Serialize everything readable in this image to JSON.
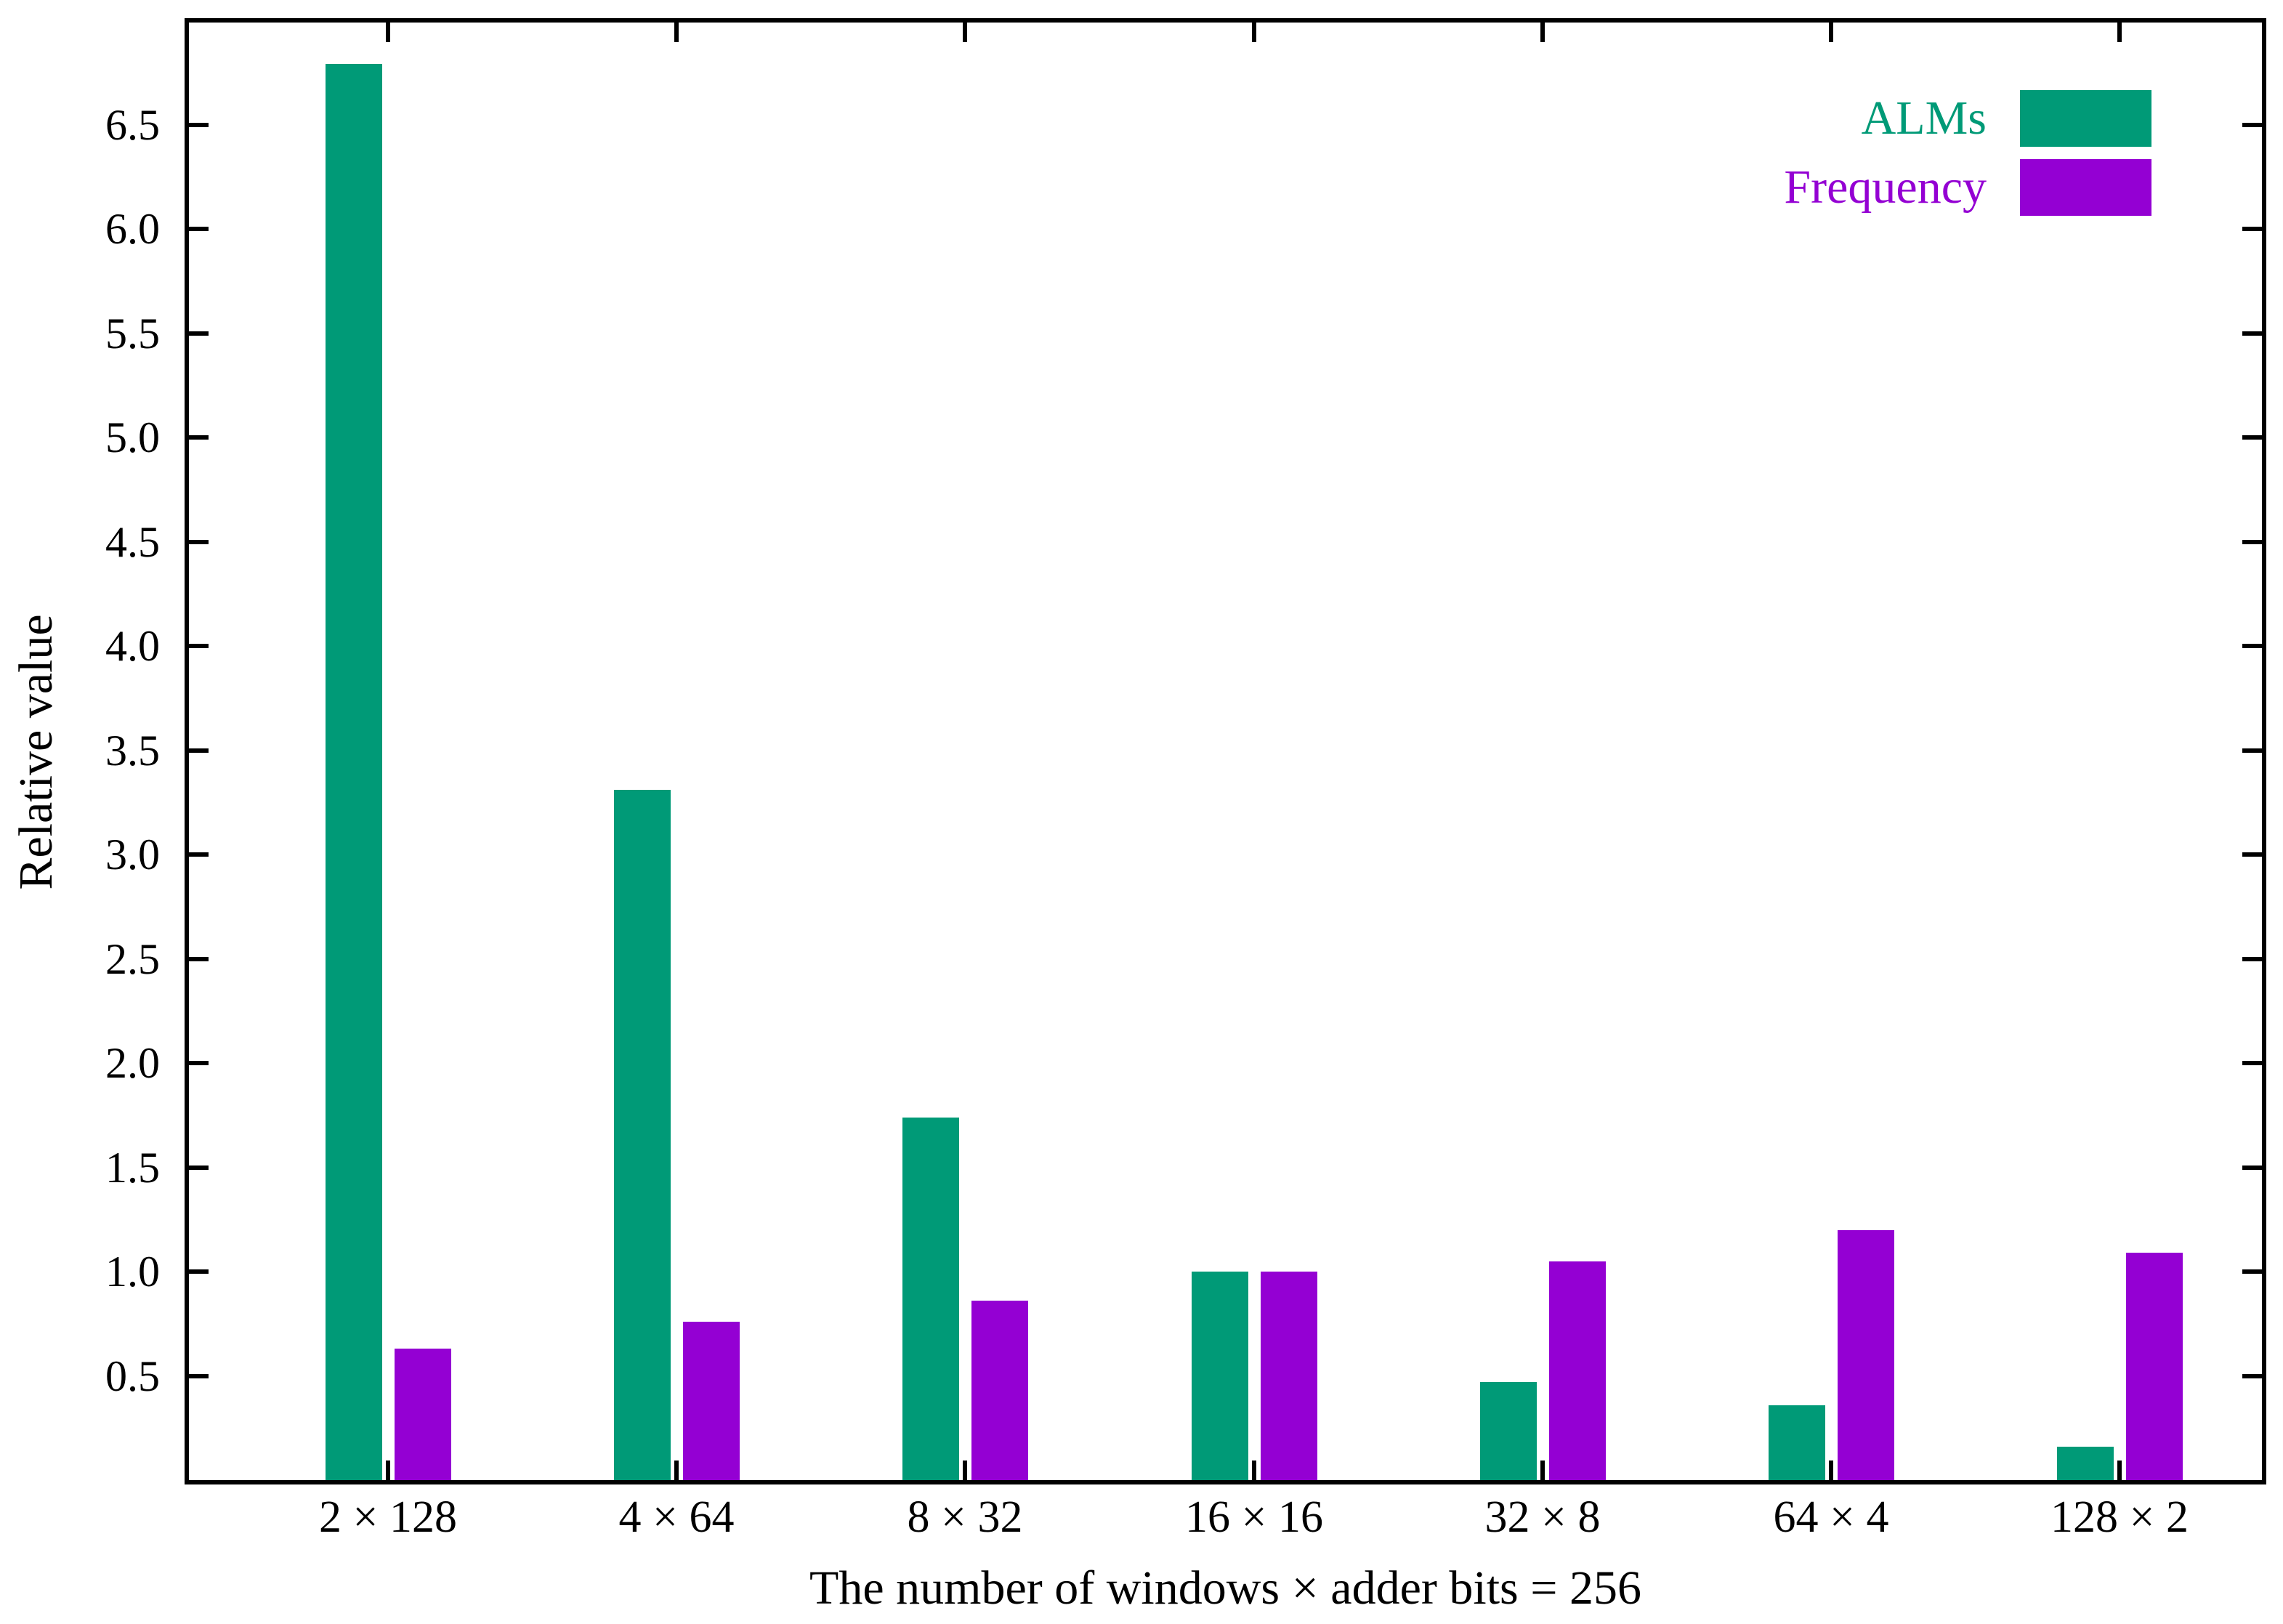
{
  "chart_data": {
    "type": "bar",
    "title": "",
    "xlabel": "The number of windows × adder bits = 256",
    "ylabel": "Relative value",
    "categories": [
      "2 × 128",
      "4 × 64",
      "8 × 32",
      "16 × 16",
      "32 × 8",
      "64 × 4",
      "128 × 2"
    ],
    "series": [
      {
        "name": "ALMs",
        "color": "#009a77",
        "values": [
          6.79,
          3.31,
          1.74,
          1.0,
          0.47,
          0.36,
          0.16
        ]
      },
      {
        "name": "Frequency",
        "color": "#9400d3",
        "values": [
          0.63,
          0.76,
          0.86,
          1.0,
          1.05,
          1.2,
          1.09
        ]
      }
    ],
    "ylim": [
      0,
      6.99
    ],
    "yticks": [
      0.5,
      1.0,
      1.5,
      2.0,
      2.5,
      3.0,
      3.5,
      4.0,
      4.5,
      5.0,
      5.5,
      6.0,
      6.5
    ],
    "ytick_labels": [
      "0.5",
      "1.0",
      "1.5",
      "2.0",
      "2.5",
      "3.0",
      "3.5",
      "4.0",
      "4.5",
      "5.0",
      "5.5",
      "6.0",
      "6.5"
    ],
    "legend": {
      "position": "top-right",
      "entries": [
        {
          "label": "ALMs",
          "color": "#009a77"
        },
        {
          "label": "Frequency",
          "color": "#9400d3"
        }
      ]
    },
    "grid": false,
    "axis_color": "#000000",
    "background_color": "#ffffff"
  }
}
